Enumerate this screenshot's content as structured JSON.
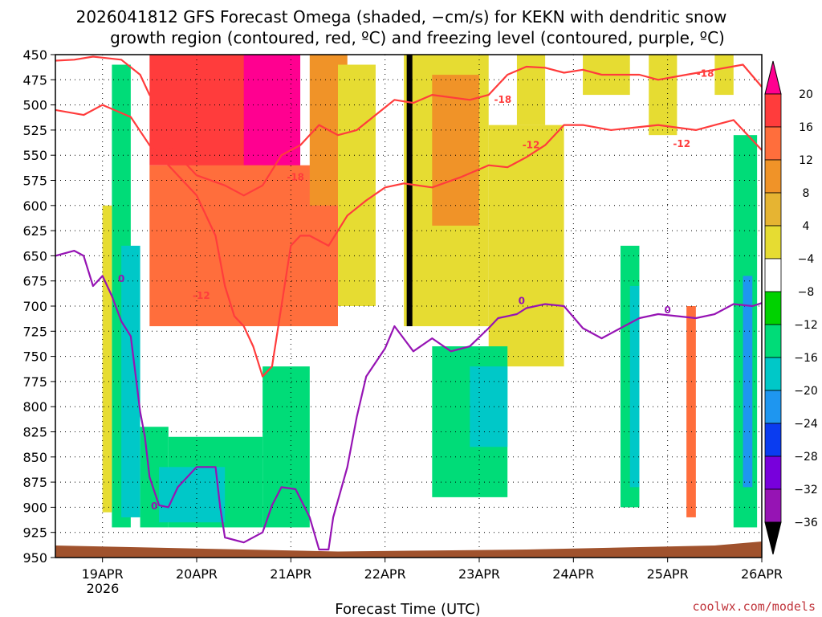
{
  "chart_data": {
    "type": "heatmap",
    "title_line1": "2026041812 GFS Forecast Omega (shaded, −cm/s) for KEKN with dendritic snow",
    "title_line2": "growth region (contoured, red, ºC) and freezing level (contoured, purple, ºC)",
    "xlabel": "Forecast Time (UTC)",
    "year_label": "2026",
    "credit": "coolwx.com/models",
    "y_ticks": [
      "450",
      "475",
      "500",
      "525",
      "550",
      "575",
      "600",
      "625",
      "650",
      "675",
      "700",
      "725",
      "750",
      "775",
      "800",
      "825",
      "850",
      "875",
      "900",
      "925",
      "950"
    ],
    "ylim": [
      950,
      450
    ],
    "x_ticks": [
      {
        "label": "19APR",
        "day": 0.5
      },
      {
        "label": "20APR",
        "day": 1.5
      },
      {
        "label": "21APR",
        "day": 2.5
      },
      {
        "label": "22APR",
        "day": 3.5
      },
      {
        "label": "23APR",
        "day": 4.5
      },
      {
        "label": "24APR",
        "day": 5.5
      },
      {
        "label": "25APR",
        "day": 6.5
      },
      {
        "label": "26APR",
        "day": 7.5
      }
    ],
    "x_range_days": [
      0,
      7.5
    ],
    "colorbar": {
      "labels": [
        "20",
        "16",
        "12",
        "8",
        "4",
        "−4",
        "−8",
        "−12",
        "−16",
        "−20",
        "−24",
        "−28",
        "−32",
        "−36"
      ],
      "colors": [
        "#ff0090",
        "#ff3c3c",
        "#ff6e3c",
        "#f09328",
        "#e6b432",
        "#e6dc32",
        "#ffffff",
        "#00d200",
        "#00dc78",
        "#00c8c8",
        "#1e96f0",
        "#0a3cf0",
        "#7800dc",
        "#9614b4",
        "#aaaaaa",
        "#000000"
      ]
    },
    "omega_cells": [
      {
        "t": [
          1.2,
          2.6
        ],
        "p": [
          450,
          660
        ],
        "v": 20
      },
      {
        "t": [
          1.0,
          2.0
        ],
        "p": [
          450,
          560
        ],
        "v": 16
      },
      {
        "t": [
          1.3,
          1.9
        ],
        "p": [
          560,
          690
        ],
        "v": 16
      },
      {
        "t": [
          1.7,
          2.2
        ],
        "p": [
          560,
          640
        ],
        "v": 16
      },
      {
        "t": [
          1.0,
          3.0
        ],
        "p": [
          560,
          720
        ],
        "v": 12
      },
      {
        "t": [
          2.7,
          3.1
        ],
        "p": [
          450,
          600
        ],
        "v": 8
      },
      {
        "t": [
          3.0,
          3.4
        ],
        "p": [
          460,
          700
        ],
        "v": 4
      },
      {
        "t": [
          3.7,
          4.6
        ],
        "p": [
          450,
          720
        ],
        "v": 4
      },
      {
        "t": [
          4.0,
          4.5
        ],
        "p": [
          470,
          620
        ],
        "v": 8
      },
      {
        "t": [
          4.6,
          5.4
        ],
        "p": [
          520,
          760
        ],
        "v": 4
      },
      {
        "t": [
          4.9,
          5.2
        ],
        "p": [
          450,
          520
        ],
        "v": 4
      },
      {
        "t": [
          5.6,
          6.1
        ],
        "p": [
          450,
          490
        ],
        "v": 4
      },
      {
        "t": [
          6.3,
          6.6
        ],
        "p": [
          450,
          530
        ],
        "v": 4
      },
      {
        "t": [
          7.0,
          7.2
        ],
        "p": [
          450,
          490
        ],
        "v": 4
      },
      {
        "t": [
          7.3,
          7.45
        ],
        "p": [
          580,
          630
        ],
        "v": 4
      },
      {
        "t": [
          0.6,
          0.8
        ],
        "p": [
          460,
          920
        ],
        "v": -8
      },
      {
        "t": [
          0.5,
          0.6
        ],
        "p": [
          600,
          905
        ],
        "v": 4
      },
      {
        "t": [
          0.7,
          0.9
        ],
        "p": [
          640,
          910
        ],
        "v": -12
      },
      {
        "t": [
          0.9,
          1.2
        ],
        "p": [
          820,
          920
        ],
        "v": -8
      },
      {
        "t": [
          1.2,
          2.2
        ],
        "p": [
          830,
          920
        ],
        "v": -8
      },
      {
        "t": [
          1.1,
          1.8
        ],
        "p": [
          860,
          915
        ],
        "v": -12
      },
      {
        "t": [
          2.2,
          2.7
        ],
        "p": [
          760,
          920
        ],
        "v": -8
      },
      {
        "t": [
          4.0,
          4.8
        ],
        "p": [
          740,
          890
        ],
        "v": -8
      },
      {
        "t": [
          4.4,
          4.8
        ],
        "p": [
          760,
          840
        ],
        "v": -12
      },
      {
        "t": [
          6.0,
          6.2
        ],
        "p": [
          640,
          900
        ],
        "v": -8
      },
      {
        "t": [
          6.1,
          6.2
        ],
        "p": [
          680,
          880
        ],
        "v": -12
      },
      {
        "t": [
          6.7,
          6.8
        ],
        "p": [
          700,
          910
        ],
        "v": 12
      },
      {
        "t": [
          7.2,
          7.45
        ],
        "p": [
          530,
          920
        ],
        "v": -8
      },
      {
        "t": [
          7.3,
          7.4
        ],
        "p": [
          670,
          880
        ],
        "v": -16
      }
    ],
    "dgz_contours": [
      {
        "label": "-12",
        "points": [
          [
            0.0,
            505
          ],
          [
            0.3,
            510
          ],
          [
            0.5,
            500
          ],
          [
            0.8,
            512
          ],
          [
            1.0,
            540
          ],
          [
            1.2,
            560
          ],
          [
            1.5,
            590
          ],
          [
            1.7,
            630
          ],
          [
            1.8,
            680
          ],
          [
            1.9,
            710
          ],
          [
            2.0,
            720
          ],
          [
            2.1,
            740
          ],
          [
            2.2,
            770
          ],
          [
            2.3,
            760
          ],
          [
            2.5,
            640
          ],
          [
            2.6,
            630
          ],
          [
            2.7,
            630
          ],
          [
            2.9,
            640
          ],
          [
            3.1,
            610
          ],
          [
            3.3,
            595
          ],
          [
            3.5,
            582
          ],
          [
            3.7,
            578
          ],
          [
            4.0,
            582
          ],
          [
            4.3,
            572
          ],
          [
            4.6,
            560
          ],
          [
            4.8,
            562
          ],
          [
            5.0,
            552
          ],
          [
            5.2,
            540
          ],
          [
            5.4,
            520
          ],
          [
            5.6,
            520
          ],
          [
            5.9,
            525
          ],
          [
            6.2,
            522
          ],
          [
            6.4,
            520
          ],
          [
            6.8,
            525
          ],
          [
            7.2,
            515
          ],
          [
            7.5,
            545
          ]
        ]
      },
      {
        "label": "-18",
        "points": [
          [
            0.0,
            456
          ],
          [
            0.2,
            455
          ],
          [
            0.4,
            452
          ],
          [
            0.7,
            455
          ],
          [
            0.9,
            470
          ],
          [
            1.0,
            490
          ],
          [
            1.1,
            500
          ],
          [
            1.2,
            540
          ],
          [
            1.5,
            570
          ],
          [
            1.8,
            580
          ],
          [
            2.0,
            590
          ],
          [
            2.2,
            580
          ],
          [
            2.4,
            550
          ],
          [
            2.6,
            540
          ],
          [
            2.8,
            520
          ],
          [
            3.0,
            530
          ],
          [
            3.2,
            525
          ],
          [
            3.4,
            510
          ],
          [
            3.6,
            495
          ],
          [
            3.8,
            498
          ],
          [
            4.0,
            490
          ],
          [
            4.4,
            495
          ],
          [
            4.6,
            490
          ],
          [
            4.8,
            470
          ],
          [
            5.0,
            462
          ],
          [
            5.2,
            463
          ],
          [
            5.4,
            468
          ],
          [
            5.6,
            465
          ],
          [
            5.8,
            470
          ],
          [
            6.2,
            470
          ],
          [
            6.4,
            475
          ],
          [
            6.7,
            470
          ],
          [
            7.0,
            465
          ],
          [
            7.3,
            460
          ],
          [
            7.5,
            482
          ]
        ]
      }
    ],
    "freezing_contours": [
      {
        "label": "0",
        "points": [
          [
            0.0,
            650
          ],
          [
            0.2,
            645
          ],
          [
            0.3,
            650
          ],
          [
            0.4,
            680
          ],
          [
            0.5,
            670
          ],
          [
            0.6,
            690
          ],
          [
            0.7,
            715
          ],
          [
            0.8,
            730
          ],
          [
            0.9,
            805
          ],
          [
            0.95,
            830
          ],
          [
            1.0,
            870
          ],
          [
            1.1,
            898
          ],
          [
            1.2,
            900
          ],
          [
            1.3,
            880
          ],
          [
            1.5,
            860
          ],
          [
            1.7,
            860
          ],
          [
            1.75,
            900
          ],
          [
            1.8,
            930
          ],
          [
            2.0,
            935
          ],
          [
            2.2,
            925
          ],
          [
            2.3,
            898
          ],
          [
            2.4,
            880
          ],
          [
            2.55,
            882
          ],
          [
            2.7,
            910
          ],
          [
            2.8,
            942
          ],
          [
            2.9,
            942
          ],
          [
            2.95,
            910
          ],
          [
            3.1,
            860
          ],
          [
            3.2,
            810
          ],
          [
            3.3,
            770
          ],
          [
            3.5,
            742
          ],
          [
            3.6,
            720
          ],
          [
            3.8,
            745
          ],
          [
            4.0,
            732
          ],
          [
            4.2,
            745
          ],
          [
            4.4,
            740
          ],
          [
            4.6,
            722
          ],
          [
            4.7,
            712
          ],
          [
            4.9,
            708
          ],
          [
            5.0,
            702
          ],
          [
            5.2,
            698
          ],
          [
            5.4,
            700
          ],
          [
            5.6,
            722
          ],
          [
            5.8,
            732
          ],
          [
            6.0,
            722
          ],
          [
            6.2,
            712
          ],
          [
            6.4,
            708
          ],
          [
            6.6,
            710
          ],
          [
            6.8,
            712
          ],
          [
            7.0,
            708
          ],
          [
            7.2,
            698
          ],
          [
            7.4,
            700
          ],
          [
            7.5,
            697
          ]
        ]
      }
    ],
    "contour_label_positions": [
      {
        "text": "-12",
        "t": 1.55,
        "p": 693,
        "color": "#ff3c3c"
      },
      {
        "text": "-12",
        "t": 5.05,
        "p": 543,
        "color": "#ff3c3c"
      },
      {
        "text": "-12",
        "t": 6.65,
        "p": 542,
        "color": "#ff3c3c"
      },
      {
        "text": "-18",
        "t": 2.55,
        "p": 575,
        "color": "#ff3c3c"
      },
      {
        "text": "-18",
        "t": 4.75,
        "p": 498,
        "color": "#ff3c3c"
      },
      {
        "text": "-18",
        "t": 6.9,
        "p": 472,
        "color": "#ff3c3c"
      },
      {
        "text": "0",
        "t": 0.7,
        "p": 676,
        "color": "#9614b4"
      },
      {
        "text": "0",
        "t": 1.05,
        "p": 902,
        "color": "#9614b4"
      },
      {
        "text": "0",
        "t": 4.95,
        "p": 698,
        "color": "#9614b4"
      },
      {
        "text": "0",
        "t": 6.5,
        "p": 707,
        "color": "#9614b4"
      }
    ]
  }
}
